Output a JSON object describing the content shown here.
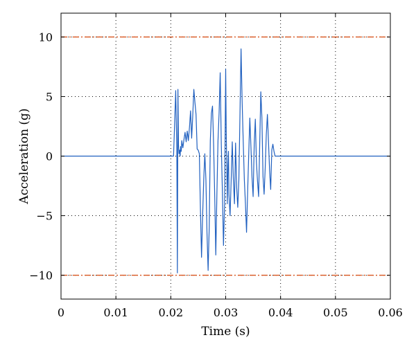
{
  "chart_data": {
    "type": "line",
    "title": "",
    "xlabel": "Time (s)",
    "ylabel": "Acceleration (g)",
    "xlim": [
      0,
      0.06
    ],
    "ylim": [
      -12,
      12
    ],
    "xticks": [
      0,
      0.01,
      0.02,
      0.03,
      0.04,
      0.05,
      0.06
    ],
    "xtick_labels": [
      "0",
      "0.01",
      "0.02",
      "0.03",
      "0.04",
      "0.05",
      "0.06"
    ],
    "yticks": [
      -10,
      -5,
      0,
      5,
      10
    ],
    "ytick_labels": [
      "−10",
      "−5",
      "0",
      "5",
      "10"
    ],
    "grid": true,
    "legend": "none",
    "colors": {
      "signal": "#1f5fbf",
      "limit": "#d9541e"
    },
    "reference_lines": [
      {
        "y": 10
      },
      {
        "y": -10
      }
    ],
    "series": [
      {
        "x": [
          0,
          0.0205,
          0.0209,
          0.0211,
          0.0212,
          0.0213,
          0.0214,
          0.0215,
          0.0216,
          0.0217,
          0.0218,
          0.0219,
          0.022,
          0.0222,
          0.0224,
          0.0226,
          0.0228,
          0.023,
          0.0232,
          0.0234,
          0.0236,
          0.0238,
          0.024,
          0.0242,
          0.0244,
          0.0246,
          0.0248,
          0.025,
          0.0252,
          0.0254,
          0.0256,
          0.0258,
          0.026,
          0.0262,
          0.0264,
          0.0266,
          0.0268,
          0.027,
          0.0272,
          0.0274,
          0.0276,
          0.0278,
          0.028,
          0.0282,
          0.0284,
          0.0286,
          0.0288,
          0.029,
          0.0292,
          0.0294,
          0.0296,
          0.0298,
          0.03,
          0.0301,
          0.0302,
          0.0303,
          0.0304,
          0.0305,
          0.0306,
          0.0308,
          0.031,
          0.0312,
          0.0314,
          0.0316,
          0.0318,
          0.032,
          0.0322,
          0.0324,
          0.0326,
          0.0328,
          0.033,
          0.0332,
          0.0334,
          0.0336,
          0.0338,
          0.034,
          0.0342,
          0.0344,
          0.0346,
          0.0348,
          0.035,
          0.0352,
          0.0354,
          0.0356,
          0.0358,
          0.036,
          0.0362,
          0.0364,
          0.0366,
          0.0368,
          0.037,
          0.0372,
          0.0374,
          0.0376,
          0.0378,
          0.038,
          0.0382,
          0.0384,
          0.0386,
          0.0388,
          0.039,
          0.0392,
          0.0394,
          0.0396,
          0.0398,
          0.06
        ],
        "y": [
          0,
          0,
          5.5,
          0.5,
          -9.8,
          5.6,
          1,
          0.2,
          0.5,
          0,
          0.8,
          0.4,
          1.3,
          0.7,
          1.4,
          2,
          1.2,
          2.1,
          1.3,
          2.4,
          3.8,
          1.5,
          3.4,
          5.6,
          4.5,
          3.5,
          0.6,
          0.5,
          0.2,
          -4.5,
          -8.5,
          -5,
          -2,
          0.2,
          -2,
          -6.5,
          -9.6,
          -6,
          1.3,
          3.6,
          4.2,
          1,
          -3.3,
          -8.3,
          -3.2,
          1.3,
          3.6,
          7,
          1,
          -3,
          -7.5,
          -4,
          7.3,
          2,
          -1,
          -4,
          -0.8,
          0.4,
          -3.2,
          -5,
          -2,
          1.2,
          -2,
          -4,
          1.1,
          -2.6,
          -4.3,
          -2,
          3.4,
          9,
          4.5,
          1.2,
          -2,
          -4,
          -6.4,
          -3,
          0.2,
          3.2,
          0.8,
          -1.8,
          -3.4,
          1,
          3.1,
          -0.5,
          -2.1,
          -3.4,
          1,
          5.4,
          3.2,
          -1.7,
          -3.2,
          -1,
          1.8,
          3.5,
          1.2,
          -1.2,
          -2.8,
          0.5,
          1,
          0.4,
          0,
          0,
          0,
          0,
          0,
          0
        ]
      }
    ]
  }
}
